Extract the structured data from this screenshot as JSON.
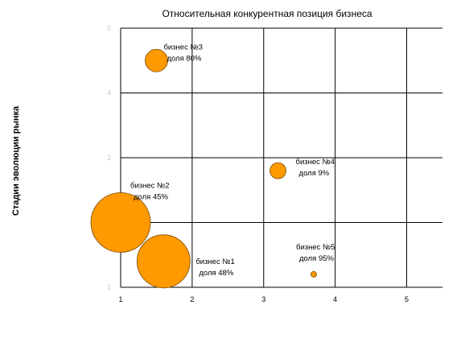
{
  "chart_data": {
    "type": "bubble",
    "title": "Относительная конкурентная позиция бизнеса",
    "xlabel": "",
    "ylabel": "Стадии эволюции рынка",
    "xlim": [
      1,
      5.5
    ],
    "ylim": [
      1,
      5
    ],
    "x_ticks": [
      "1",
      "2",
      "3",
      "4",
      "5"
    ],
    "y_ticks": [
      "1",
      "2",
      "3",
      "4",
      "5"
    ],
    "grid": true,
    "bubble_color": "#ff9900",
    "points": [
      {
        "x": 1.6,
        "y": 1.4,
        "share": 48,
        "name": "бизнес №1",
        "label": "доля 48%"
      },
      {
        "x": 1.0,
        "y": 2.0,
        "share": 45,
        "name": "бизнес №2",
        "label": "доля 45%"
      },
      {
        "x": 1.5,
        "y": 4.5,
        "share": 80,
        "name": "бизнес №3",
        "label": "доля 80%"
      },
      {
        "x": 3.2,
        "y": 2.8,
        "share": 9,
        "name": "бизнес №4",
        "label": "доля 9%"
      },
      {
        "x": 3.7,
        "y": 1.2,
        "share": 95,
        "name": "бизнес №5",
        "label": "доля 95%"
      }
    ]
  }
}
